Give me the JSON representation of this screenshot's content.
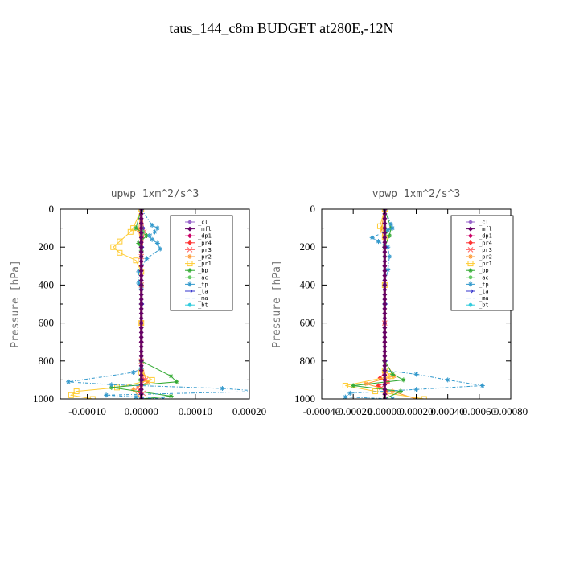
{
  "figure": {
    "title": "taus_144_c8m  BUDGET at280E,-12N"
  },
  "chart_data": [
    {
      "type": "line",
      "title": "upwp   1xm^2/s^3",
      "ylabel": "Pressure [hPa]",
      "xlabel": "",
      "xlim": [
        -0.00015,
        0.0002
      ],
      "ylim": [
        1000,
        0
      ],
      "xticks": [
        "-0.00010",
        "0.00000",
        "0.00010",
        "0.00020"
      ],
      "xtick_values": [
        -0.0001,
        0.0,
        0.0001,
        0.0002
      ],
      "yticks": [
        "0",
        "200",
        "400",
        "600",
        "800",
        "1000"
      ],
      "ytick_values": [
        0,
        200,
        400,
        600,
        800,
        1000
      ],
      "legend_position": "top-right",
      "series": [
        {
          "name": "_cl",
          "color": "#9966cc",
          "marker": "diamond",
          "dash": "",
          "x": [
            0,
            0,
            0,
            0,
            0,
            0,
            0,
            0,
            0,
            0
          ],
          "y": [
            0,
            100,
            200,
            300,
            400,
            500,
            600,
            700,
            800,
            1000
          ]
        },
        {
          "name": "_mfl",
          "color": "#660066",
          "marker": "diamond",
          "dash": "",
          "x": [
            0,
            0,
            0,
            0,
            0,
            0,
            0,
            0,
            0,
            0
          ],
          "y": [
            0,
            100,
            200,
            300,
            400,
            500,
            600,
            700,
            800,
            1000
          ]
        },
        {
          "name": "_dp1",
          "color": "#cc0066",
          "marker": "diamond",
          "dash": "",
          "x": [
            0,
            0,
            0,
            0,
            0,
            0,
            0,
            0,
            0,
            0,
            0,
            0
          ],
          "y": [
            0,
            100,
            200,
            300,
            400,
            500,
            600,
            700,
            800,
            900,
            950,
            1000
          ]
        },
        {
          "name": "_pr4",
          "color": "#ff3333",
          "marker": "diamond",
          "dash": "",
          "x": [
            0,
            2e-06,
            0,
            0,
            0,
            0,
            0,
            4e-06,
            0,
            -4e-06,
            0
          ],
          "y": [
            0,
            110,
            200,
            300,
            400,
            600,
            800,
            900,
            930,
            960,
            1000
          ]
        },
        {
          "name": "_pr3",
          "color": "#ff6666",
          "marker": "x",
          "dash": "",
          "x": [
            0,
            5e-06,
            0,
            0,
            0,
            0,
            8e-06,
            -6e-06,
            3e-06,
            0
          ],
          "y": [
            0,
            120,
            250,
            400,
            600,
            800,
            900,
            940,
            970,
            1000
          ]
        },
        {
          "name": "_pr2",
          "color": "#ff9933",
          "marker": "star",
          "dash": "",
          "x": [
            0,
            -5e-06,
            0,
            0,
            0,
            0,
            1.2e-05,
            -1.5e-05,
            0
          ],
          "y": [
            0,
            110,
            200,
            400,
            600,
            850,
            910,
            950,
            1000
          ]
        },
        {
          "name": "_pr1",
          "color": "#ffcc33",
          "marker": "square",
          "dash": "",
          "x": [
            0,
            -1.5e-05,
            -2e-05,
            -4e-05,
            -5.2e-05,
            -4e-05,
            -1e-05,
            0,
            0,
            0,
            2e-05,
            -4.5e-05,
            -0.00012,
            -0.00013,
            -9e-05
          ],
          "y": [
            0,
            100,
            120,
            170,
            200,
            230,
            270,
            330,
            600,
            860,
            900,
            940,
            960,
            980,
            1000
          ]
        },
        {
          "name": "_bp",
          "color": "#33aa33",
          "marker": "star",
          "dash": "",
          "x": [
            0,
            -1e-05,
            1e-05,
            -5e-06,
            0,
            0,
            0,
            5.5e-05,
            6.5e-05,
            -5.5e-05,
            5.5e-05,
            0
          ],
          "y": [
            0,
            100,
            140,
            180,
            220,
            400,
            800,
            880,
            910,
            940,
            985,
            1000
          ]
        },
        {
          "name": "_ac",
          "color": "#66cc66",
          "marker": "circle",
          "dash": "",
          "x": [
            0,
            3e-06,
            0,
            0,
            0,
            -2e-06,
            0,
            0
          ],
          "y": [
            0,
            120,
            250,
            500,
            800,
            900,
            950,
            1000
          ]
        },
        {
          "name": "_tp",
          "color": "#3399cc",
          "marker": "star",
          "dash": "4,2,1,2",
          "x": [
            0,
            2e-05,
            3e-05,
            2.5e-05,
            1.5e-05,
            2e-05,
            3e-05,
            3.5e-05,
            1e-05,
            -5e-06,
            -5e-06,
            0,
            0,
            -1.5e-05,
            -0.000135,
            -5.5e-05,
            0.00015,
            0.000225,
            -6.5e-05,
            -1e-05,
            4e-05,
            0
          ],
          "y": [
            0,
            85,
            100,
            120,
            140,
            160,
            180,
            210,
            260,
            330,
            390,
            420,
            840,
            860,
            910,
            925,
            945,
            960,
            980,
            990,
            1000,
            1000
          ]
        },
        {
          "name": "_ta",
          "color": "#3333cc",
          "marker": "arrow",
          "dash": "",
          "x": [
            0,
            2e-06,
            0,
            0,
            0,
            0
          ],
          "y": [
            0,
            100,
            200,
            500,
            900,
            1000
          ]
        },
        {
          "name": "_ma",
          "color": "#66aaff",
          "marker": "none",
          "dash": "6,3",
          "x": [
            0,
            0,
            0,
            0,
            0,
            0,
            0
          ],
          "y": [
            0,
            200,
            400,
            600,
            800,
            900,
            1000
          ]
        },
        {
          "name": "_bt",
          "color": "#33ccdd",
          "marker": "circle",
          "dash": "",
          "x": [
            0,
            0,
            0,
            0,
            0,
            0
          ],
          "y": [
            0,
            200,
            400,
            600,
            800,
            1000
          ]
        }
      ]
    },
    {
      "type": "line",
      "title": "vpwp   1xm^2/s^3",
      "ylabel": "Pressure [hPa]",
      "xlabel": "",
      "xlim": [
        -0.0004,
        0.0008
      ],
      "ylim": [
        1000,
        0
      ],
      "xticks": [
        "-0.00040",
        "-0.00020",
        "0.00000",
        "0.00020",
        "0.00040",
        "0.00060",
        "0.00080"
      ],
      "xtick_values": [
        -0.0004,
        -0.0002,
        0.0,
        0.0002,
        0.0004,
        0.0006,
        0.0008
      ],
      "yticks": [
        "0",
        "200",
        "400",
        "600",
        "800",
        "1000"
      ],
      "ytick_values": [
        0,
        200,
        400,
        600,
        800,
        1000
      ],
      "legend_position": "top-right",
      "series": [
        {
          "name": "_cl",
          "color": "#9966cc",
          "marker": "diamond",
          "dash": "",
          "x": [
            0,
            0,
            0,
            0,
            0,
            0
          ],
          "y": [
            0,
            200,
            400,
            600,
            800,
            1000
          ]
        },
        {
          "name": "_mfl",
          "color": "#660066",
          "marker": "diamond",
          "dash": "",
          "x": [
            0,
            0,
            0,
            0,
            0,
            0
          ],
          "y": [
            0,
            200,
            400,
            600,
            800,
            1000
          ]
        },
        {
          "name": "_dp1",
          "color": "#cc0066",
          "marker": "diamond",
          "dash": "",
          "x": [
            0,
            0,
            0,
            0,
            0,
            0,
            0,
            0,
            0,
            0,
            0
          ],
          "y": [
            0,
            100,
            200,
            300,
            400,
            500,
            600,
            700,
            800,
            900,
            1000
          ]
        },
        {
          "name": "_pr4",
          "color": "#ff3333",
          "marker": "diamond",
          "dash": "",
          "x": [
            0,
            0,
            0,
            0,
            -3e-05,
            2e-05,
            -4e-05,
            1e-05,
            0
          ],
          "y": [
            0,
            200,
            600,
            860,
            890,
            910,
            930,
            960,
            1000
          ]
        },
        {
          "name": "_pr3",
          "color": "#ff6666",
          "marker": "x",
          "dash": "",
          "x": [
            0,
            0,
            0,
            0,
            2e-05,
            -2e-05,
            1e-05,
            0
          ],
          "y": [
            0,
            200,
            600,
            880,
            910,
            940,
            970,
            1000
          ]
        },
        {
          "name": "_pr2",
          "color": "#ff9933",
          "marker": "star",
          "dash": "",
          "x": [
            0,
            -2e-05,
            0,
            0,
            0,
            6e-05,
            -0.00012,
            5e-05,
            0.0002
          ],
          "y": [
            0,
            100,
            200,
            400,
            800,
            880,
            920,
            960,
            1000
          ]
        },
        {
          "name": "_pr1",
          "color": "#ffcc33",
          "marker": "square",
          "dash": "",
          "x": [
            0,
            -3e-05,
            -1e-05,
            0,
            0,
            0,
            4e-05,
            -0.00025,
            -6e-05,
            0.00025
          ],
          "y": [
            0,
            90,
            110,
            150,
            400,
            850,
            880,
            930,
            960,
            1000
          ]
        },
        {
          "name": "_bp",
          "color": "#33aa33",
          "marker": "star",
          "dash": "",
          "x": [
            0,
            4e-05,
            3e-05,
            0,
            0,
            5e-05,
            0.00012,
            -0.0002,
            0.0001,
            0
          ],
          "y": [
            0,
            100,
            140,
            200,
            800,
            870,
            900,
            930,
            960,
            1000
          ]
        },
        {
          "name": "_ac",
          "color": "#66cc66",
          "marker": "circle",
          "dash": "",
          "x": [
            0,
            1e-05,
            0,
            0,
            0,
            0,
            0
          ],
          "y": [
            0,
            120,
            250,
            500,
            800,
            950,
            1000
          ]
        },
        {
          "name": "_tp",
          "color": "#3399cc",
          "marker": "star",
          "dash": "4,2,1,2",
          "x": [
            0,
            4e-05,
            5e-05,
            2e-05,
            -8e-05,
            -4e-05,
            2e-05,
            3e-05,
            2e-05,
            0,
            0,
            0.0002,
            0.0004,
            0.00062,
            0.0002,
            -0.00022,
            -0.00025,
            5e-05
          ],
          "y": [
            0,
            80,
            100,
            110,
            150,
            170,
            200,
            250,
            320,
            400,
            850,
            870,
            900,
            930,
            950,
            970,
            990,
            1000
          ]
        },
        {
          "name": "_ta",
          "color": "#3333cc",
          "marker": "arrow",
          "dash": "",
          "x": [
            0,
            0,
            0,
            0,
            0
          ],
          "y": [
            0,
            200,
            500,
            800,
            1000
          ]
        },
        {
          "name": "_ma",
          "color": "#66aaff",
          "marker": "none",
          "dash": "6,3",
          "x": [
            0,
            0,
            0,
            0,
            0
          ],
          "y": [
            0,
            200,
            500,
            800,
            1000
          ]
        },
        {
          "name": "_bt",
          "color": "#33ccdd",
          "marker": "circle",
          "dash": "",
          "x": [
            0,
            0,
            0,
            0,
            0
          ],
          "y": [
            0,
            200,
            500,
            800,
            1000
          ]
        }
      ]
    }
  ]
}
